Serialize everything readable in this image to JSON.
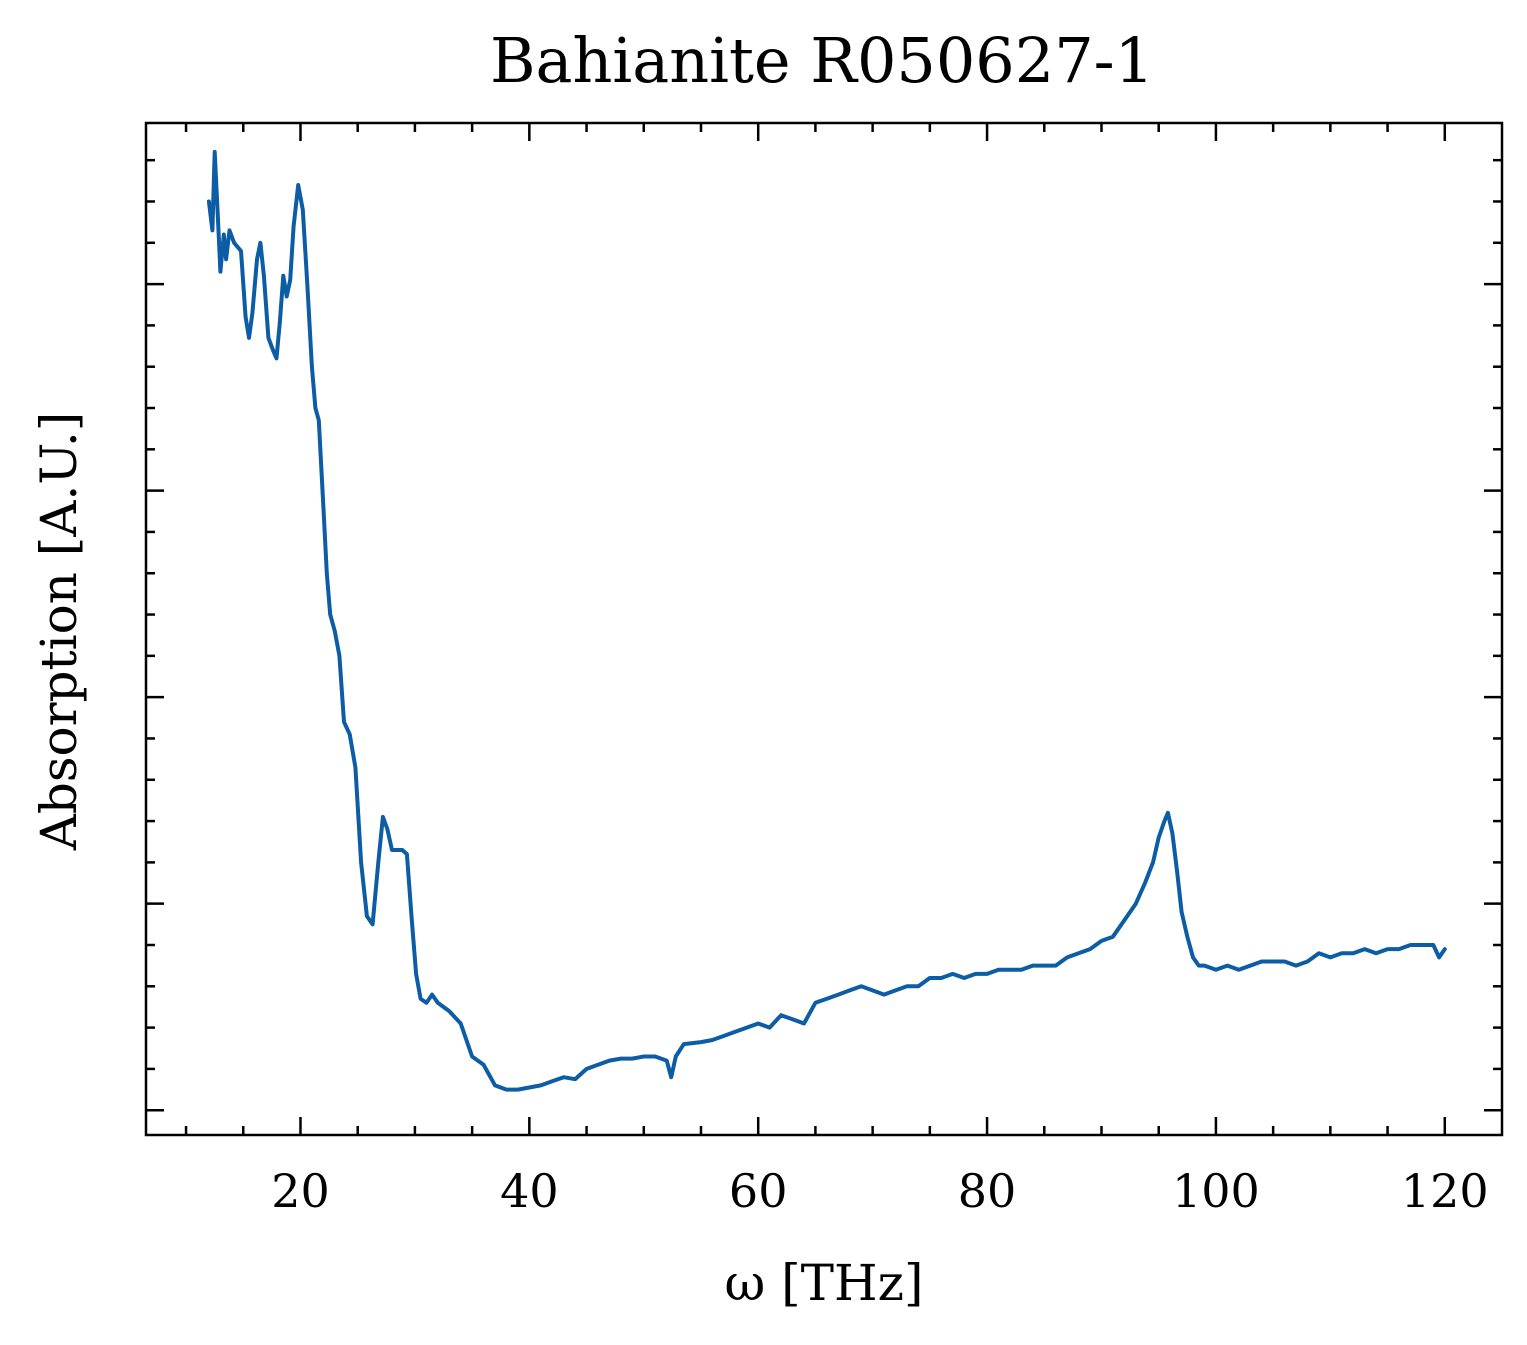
{
  "chart_data": {
    "type": "line",
    "title": "Bahianite R050627-1",
    "xlabel": "ω [THz]",
    "ylabel": "Absorption [A.U.]",
    "xlim": [
      6.5,
      125
    ],
    "ylim": [
      -0.06,
      2.39
    ],
    "x_ticks": [
      20,
      40,
      60,
      80,
      100,
      120
    ],
    "x_tick_labels": [
      "20",
      "40",
      "60",
      "80",
      "100",
      "120"
    ],
    "y_ticks": [
      0.0,
      0.5,
      1.0,
      1.5,
      2.0
    ],
    "y_tick_labels_shown": false,
    "grid": false,
    "line_color": "#0C5DA5",
    "series": [
      {
        "points": [
          [
            12.0,
            2.2
          ],
          [
            12.3,
            2.13
          ],
          [
            12.5,
            2.32
          ],
          [
            12.8,
            2.15
          ],
          [
            13.0,
            2.03
          ],
          [
            13.3,
            2.12
          ],
          [
            13.5,
            2.06
          ],
          [
            13.8,
            2.13
          ],
          [
            14.2,
            2.1
          ],
          [
            14.8,
            2.08
          ],
          [
            15.2,
            1.92
          ],
          [
            15.5,
            1.87
          ],
          [
            15.8,
            1.93
          ],
          [
            16.2,
            2.06
          ],
          [
            16.5,
            2.1
          ],
          [
            16.8,
            2.02
          ],
          [
            17.2,
            1.87
          ],
          [
            17.6,
            1.84
          ],
          [
            17.9,
            1.82
          ],
          [
            18.2,
            1.91
          ],
          [
            18.5,
            2.02
          ],
          [
            18.8,
            1.97
          ],
          [
            19.1,
            2.01
          ],
          [
            19.4,
            2.14
          ],
          [
            19.8,
            2.24
          ],
          [
            20.2,
            2.18
          ],
          [
            20.6,
            2.0
          ],
          [
            21.0,
            1.8
          ],
          [
            21.3,
            1.7
          ],
          [
            21.6,
            1.67
          ],
          [
            22.0,
            1.46
          ],
          [
            22.3,
            1.3
          ],
          [
            22.6,
            1.2
          ],
          [
            23.0,
            1.16
          ],
          [
            23.4,
            1.1
          ],
          [
            23.8,
            0.94
          ],
          [
            24.3,
            0.91
          ],
          [
            24.8,
            0.83
          ],
          [
            25.3,
            0.6
          ],
          [
            25.8,
            0.47
          ],
          [
            26.3,
            0.45
          ],
          [
            26.8,
            0.6
          ],
          [
            27.2,
            0.71
          ],
          [
            27.6,
            0.68
          ],
          [
            28.0,
            0.63
          ],
          [
            28.5,
            0.63
          ],
          [
            28.9,
            0.63
          ],
          [
            29.3,
            0.62
          ],
          [
            29.7,
            0.47
          ],
          [
            30.1,
            0.33
          ],
          [
            30.5,
            0.27
          ],
          [
            31.0,
            0.26
          ],
          [
            31.5,
            0.28
          ],
          [
            32.0,
            0.26
          ],
          [
            33.0,
            0.24
          ],
          [
            34.0,
            0.21
          ],
          [
            35.0,
            0.13
          ],
          [
            36.0,
            0.11
          ],
          [
            37.0,
            0.06
          ],
          [
            38.0,
            0.05
          ],
          [
            39.0,
            0.05
          ],
          [
            40.0,
            0.055
          ],
          [
            41.0,
            0.06
          ],
          [
            42.0,
            0.07
          ],
          [
            43.0,
            0.08
          ],
          [
            44.0,
            0.075
          ],
          [
            45.0,
            0.1
          ],
          [
            46.0,
            0.11
          ],
          [
            47.0,
            0.12
          ],
          [
            48.0,
            0.125
          ],
          [
            49.0,
            0.125
          ],
          [
            50.0,
            0.13
          ],
          [
            51.0,
            0.13
          ],
          [
            52.0,
            0.12
          ],
          [
            52.4,
            0.08
          ],
          [
            52.8,
            0.13
          ],
          [
            53.5,
            0.16
          ],
          [
            55.0,
            0.165
          ],
          [
            56.0,
            0.17
          ],
          [
            57.0,
            0.18
          ],
          [
            58.0,
            0.19
          ],
          [
            59.0,
            0.2
          ],
          [
            60.0,
            0.21
          ],
          [
            61.0,
            0.2
          ],
          [
            62.0,
            0.23
          ],
          [
            63.0,
            0.22
          ],
          [
            64.0,
            0.21
          ],
          [
            65.0,
            0.26
          ],
          [
            66.0,
            0.27
          ],
          [
            67.0,
            0.28
          ],
          [
            68.0,
            0.29
          ],
          [
            69.0,
            0.3
          ],
          [
            70.0,
            0.29
          ],
          [
            71.0,
            0.28
          ],
          [
            72.0,
            0.29
          ],
          [
            73.0,
            0.3
          ],
          [
            74.0,
            0.3
          ],
          [
            75.0,
            0.32
          ],
          [
            76.0,
            0.32
          ],
          [
            77.0,
            0.33
          ],
          [
            78.0,
            0.32
          ],
          [
            79.0,
            0.33
          ],
          [
            80.0,
            0.33
          ],
          [
            81.0,
            0.34
          ],
          [
            82.0,
            0.34
          ],
          [
            83.0,
            0.34
          ],
          [
            84.0,
            0.35
          ],
          [
            85.0,
            0.35
          ],
          [
            86.0,
            0.35
          ],
          [
            87.0,
            0.37
          ],
          [
            88.0,
            0.38
          ],
          [
            89.0,
            0.39
          ],
          [
            90.0,
            0.41
          ],
          [
            91.0,
            0.42
          ],
          [
            92.0,
            0.46
          ],
          [
            93.0,
            0.5
          ],
          [
            93.8,
            0.55
          ],
          [
            94.5,
            0.6
          ],
          [
            95.0,
            0.66
          ],
          [
            95.5,
            0.7
          ],
          [
            95.8,
            0.72
          ],
          [
            96.2,
            0.67
          ],
          [
            96.6,
            0.58
          ],
          [
            97.0,
            0.48
          ],
          [
            97.5,
            0.42
          ],
          [
            98.0,
            0.37
          ],
          [
            98.5,
            0.35
          ],
          [
            99.0,
            0.35
          ],
          [
            100.0,
            0.34
          ],
          [
            101.0,
            0.35
          ],
          [
            102.0,
            0.34
          ],
          [
            103.0,
            0.35
          ],
          [
            104.0,
            0.36
          ],
          [
            105.0,
            0.36
          ],
          [
            106.0,
            0.36
          ],
          [
            107.0,
            0.35
          ],
          [
            108.0,
            0.36
          ],
          [
            109.0,
            0.38
          ],
          [
            110.0,
            0.37
          ],
          [
            111.0,
            0.38
          ],
          [
            112.0,
            0.38
          ],
          [
            113.0,
            0.39
          ],
          [
            114.0,
            0.38
          ],
          [
            115.0,
            0.39
          ],
          [
            116.0,
            0.39
          ],
          [
            117.0,
            0.4
          ],
          [
            118.0,
            0.4
          ],
          [
            119.0,
            0.4
          ],
          [
            119.5,
            0.37
          ],
          [
            120.0,
            0.39
          ]
        ]
      }
    ]
  }
}
